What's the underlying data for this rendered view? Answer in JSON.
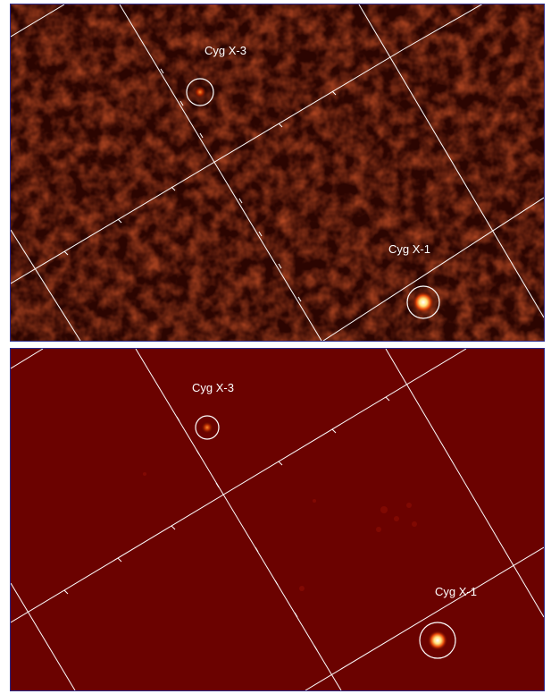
{
  "panels": [
    {
      "id": "top",
      "sources": [
        {
          "name": "Cyg X-3"
        },
        {
          "name": "Cyg X-1"
        }
      ]
    },
    {
      "id": "bottom",
      "sources": [
        {
          "name": "Cyg X-3"
        },
        {
          "name": "Cyg X-1"
        }
      ]
    }
  ],
  "colors": {
    "top_background": "#2c0501",
    "bottom_background": "#6b0200",
    "grid": "#ffffff",
    "frame": "#2a2a8c"
  }
}
